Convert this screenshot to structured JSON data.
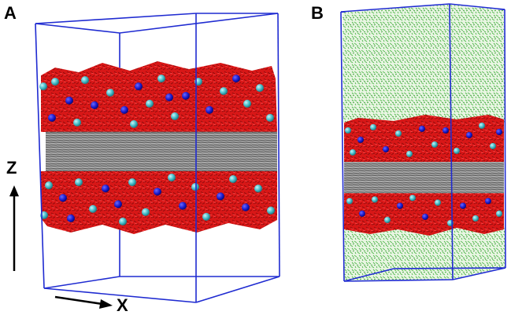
{
  "figure": {
    "panels": [
      {
        "id": "A",
        "label": "A"
      },
      {
        "id": "B",
        "label": "B"
      }
    ],
    "axes": {
      "vertical": "Z",
      "horizontal": "X"
    }
  },
  "colors": {
    "box_edge": "#1f2bd1",
    "water": "#cc1111",
    "lipid_core": "#8a8a8a",
    "ion_blue": "#1a1acc",
    "ion_cyan": "#39b7c4",
    "solvent_green": "#55c255"
  },
  "legend_icons": [
    "up-arrow-icon",
    "right-arrow-icon"
  ]
}
